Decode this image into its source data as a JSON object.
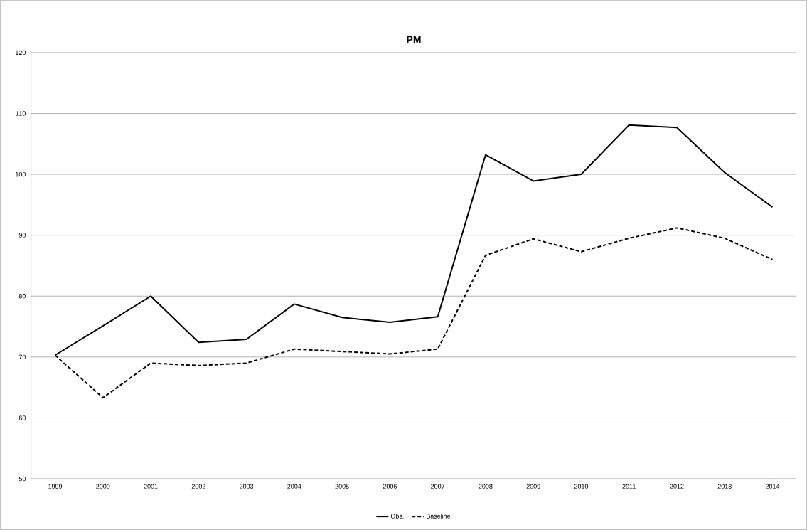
{
  "chart_data": {
    "type": "line",
    "title": "PM",
    "categories": [
      "1999",
      "2000",
      "2001",
      "2002",
      "2003",
      "2004",
      "2005",
      "2006",
      "2007",
      "2008",
      "2009",
      "2010",
      "2011",
      "2012",
      "2013",
      "2014"
    ],
    "series": [
      {
        "name": "Obs.",
        "color": "#000000",
        "line_style": "solid",
        "values": [
          70.3,
          75.1,
          80.0,
          72.4,
          72.9,
          78.7,
          76.5,
          75.7,
          76.6,
          103.2,
          98.9,
          100.0,
          108.1,
          107.7,
          100.3,
          94.6
        ]
      },
      {
        "name": "Baseline",
        "color": "#000000",
        "line_style": "dashed",
        "values": [
          70.3,
          63.3,
          69.0,
          68.6,
          69.0,
          71.3,
          70.9,
          70.5,
          71.3,
          86.7,
          89.4,
          87.3,
          89.5,
          91.2,
          89.5,
          86.0
        ]
      }
    ],
    "ylim": [
      50,
      120
    ],
    "yticks": [
      50,
      60,
      70,
      80,
      90,
      100,
      110,
      120
    ],
    "grid": "y",
    "legend": "bottom",
    "marker": "none"
  }
}
